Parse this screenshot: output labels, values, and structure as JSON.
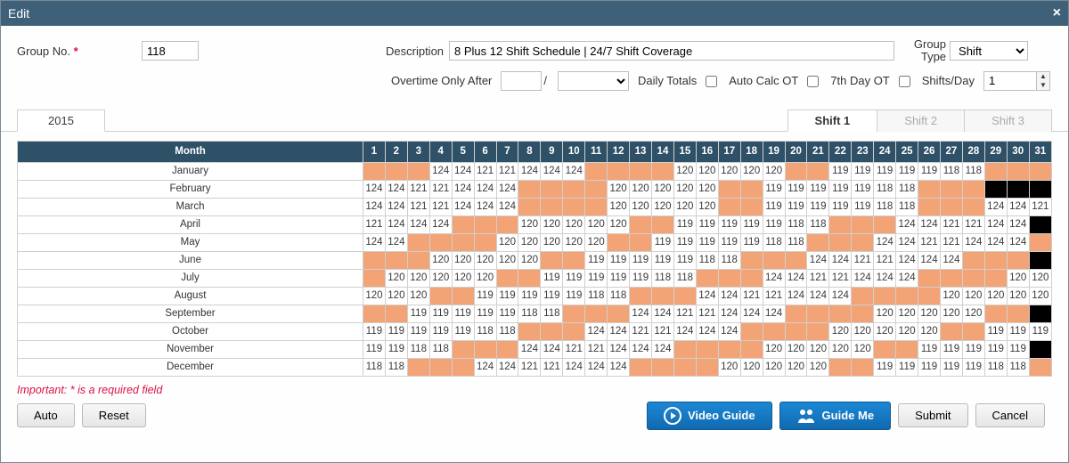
{
  "window": {
    "title": "Edit"
  },
  "form": {
    "group_no_label": "Group No.",
    "group_no_value": "118",
    "description_label": "Description",
    "description_value": "8 Plus 12 Shift Schedule | 24/7 Shift Coverage",
    "group_type_label": "Group\nType",
    "group_type_value": "Shift",
    "ot_after_label": "Overtime Only After",
    "ot_after_value": "",
    "ot_after_unit": "",
    "daily_totals_label": "Daily Totals",
    "auto_calc_ot_label": "Auto Calc OT",
    "seventh_day_ot_label": "7th Day OT",
    "shifts_day_label": "Shifts/Day",
    "shifts_day_value": "1"
  },
  "tabs": {
    "year": "2015",
    "shifts": [
      "Shift 1",
      "Shift 2",
      "Shift 3"
    ],
    "active_shift": 0
  },
  "grid": {
    "month_header": "Month",
    "days": [
      1,
      2,
      3,
      4,
      5,
      6,
      7,
      8,
      9,
      10,
      11,
      12,
      13,
      14,
      15,
      16,
      17,
      18,
      19,
      20,
      21,
      22,
      23,
      24,
      25,
      26,
      27,
      28,
      29,
      30,
      31
    ],
    "colors": {
      "value": "#ffffff",
      "orange": "#f3a477",
      "black": "#000000",
      "header_bg": "#2e5168"
    },
    "rows": [
      {
        "month": "January",
        "cells": [
          "",
          "",
          "",
          "124",
          "124",
          "121",
          "121",
          "124",
          "124",
          "124",
          "",
          "",
          "",
          "",
          "120",
          "120",
          "120",
          "120",
          "120",
          "",
          "",
          "119",
          "119",
          "119",
          "119",
          "119",
          "118",
          "118",
          "",
          "",
          ""
        ]
      },
      {
        "month": "February",
        "cells": [
          "124",
          "124",
          "121",
          "121",
          "124",
          "124",
          "124",
          "",
          "",
          "",
          "",
          "120",
          "120",
          "120",
          "120",
          "120",
          "",
          "",
          "119",
          "119",
          "119",
          "119",
          "119",
          "118",
          "118",
          "",
          "",
          "",
          "B",
          "B",
          "B"
        ]
      },
      {
        "month": "March",
        "cells": [
          "124",
          "124",
          "121",
          "121",
          "124",
          "124",
          "124",
          "",
          "",
          "",
          "",
          "120",
          "120",
          "120",
          "120",
          "120",
          "",
          "",
          "119",
          "119",
          "119",
          "119",
          "119",
          "118",
          "118",
          "",
          "",
          "",
          "124",
          "124",
          "121"
        ]
      },
      {
        "month": "April",
        "cells": [
          "121",
          "124",
          "124",
          "124",
          "",
          "",
          "",
          "120",
          "120",
          "120",
          "120",
          "120",
          "",
          "",
          "119",
          "119",
          "119",
          "119",
          "119",
          "118",
          "118",
          "",
          "",
          "",
          "124",
          "124",
          "121",
          "121",
          "124",
          "124",
          "B"
        ]
      },
      {
        "month": "May",
        "cells": [
          "124",
          "124",
          "",
          "",
          "",
          "",
          "120",
          "120",
          "120",
          "120",
          "120",
          "",
          "",
          "119",
          "119",
          "119",
          "119",
          "119",
          "118",
          "118",
          "",
          "",
          "",
          "124",
          "124",
          "121",
          "121",
          "124",
          "124",
          "124",
          ""
        ]
      },
      {
        "month": "June",
        "cells": [
          "",
          "",
          "",
          "120",
          "120",
          "120",
          "120",
          "120",
          "",
          "",
          "119",
          "119",
          "119",
          "119",
          "119",
          "118",
          "118",
          "",
          "",
          "",
          "124",
          "124",
          "121",
          "121",
          "124",
          "124",
          "124",
          "",
          "",
          "",
          "B"
        ]
      },
      {
        "month": "July",
        "cells": [
          "",
          "120",
          "120",
          "120",
          "120",
          "120",
          "",
          "",
          "119",
          "119",
          "119",
          "119",
          "119",
          "118",
          "118",
          "",
          "",
          "",
          "124",
          "124",
          "121",
          "121",
          "124",
          "124",
          "124",
          "",
          "",
          "",
          "",
          "120",
          "120"
        ]
      },
      {
        "month": "August",
        "cells": [
          "120",
          "120",
          "120",
          "",
          "",
          "119",
          "119",
          "119",
          "119",
          "119",
          "118",
          "118",
          "",
          "",
          "",
          "124",
          "124",
          "121",
          "121",
          "124",
          "124",
          "124",
          "",
          "",
          "",
          "",
          "120",
          "120",
          "120",
          "120",
          "120"
        ]
      },
      {
        "month": "September",
        "cells": [
          "",
          "",
          "119",
          "119",
          "119",
          "119",
          "119",
          "118",
          "118",
          "",
          "",
          "",
          "124",
          "124",
          "121",
          "121",
          "124",
          "124",
          "124",
          "",
          "",
          "",
          "",
          "120",
          "120",
          "120",
          "120",
          "120",
          "",
          "",
          "B"
        ]
      },
      {
        "month": "October",
        "cells": [
          "119",
          "119",
          "119",
          "119",
          "119",
          "118",
          "118",
          "",
          "",
          "",
          "124",
          "124",
          "121",
          "121",
          "124",
          "124",
          "124",
          "",
          "",
          "",
          "",
          "120",
          "120",
          "120",
          "120",
          "120",
          "",
          "",
          "119",
          "119",
          "119"
        ]
      },
      {
        "month": "November",
        "cells": [
          "119",
          "119",
          "118",
          "118",
          "",
          "",
          "",
          "124",
          "124",
          "121",
          "121",
          "124",
          "124",
          "124",
          "",
          "",
          "",
          "",
          "120",
          "120",
          "120",
          "120",
          "120",
          "",
          "",
          "119",
          "119",
          "119",
          "119",
          "119",
          "B"
        ]
      },
      {
        "month": "December",
        "cells": [
          "118",
          "118",
          "",
          "",
          "",
          "124",
          "124",
          "121",
          "121",
          "124",
          "124",
          "124",
          "",
          "",
          "",
          "",
          "120",
          "120",
          "120",
          "120",
          "120",
          "",
          "",
          "119",
          "119",
          "119",
          "119",
          "119",
          "118",
          "118",
          ""
        ]
      }
    ]
  },
  "footer": {
    "note": "Important: * is a required field",
    "auto": "Auto",
    "reset": "Reset",
    "video_guide": "Video Guide",
    "guide_me": "Guide Me",
    "submit": "Submit",
    "cancel": "Cancel"
  }
}
